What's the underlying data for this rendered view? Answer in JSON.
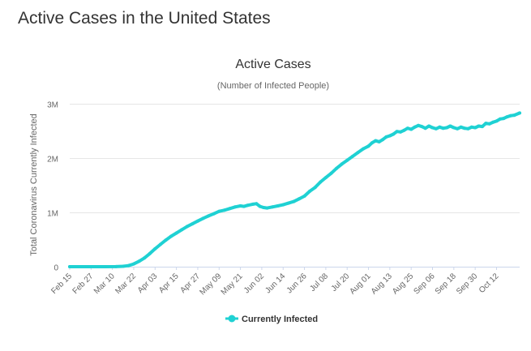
{
  "page": {
    "heading": "Active Cases in the United States"
  },
  "colors": {
    "series": "#1fd1d3",
    "grid": "#e6e6e6",
    "axis_text": "#666666",
    "title_text": "#333333"
  },
  "chart_data": {
    "type": "line",
    "title": "Active Cases",
    "subtitle": "(Number of Infected People)",
    "xlabel": "",
    "ylabel": "Total Coronavirus Currently Infected",
    "ylim": [
      0,
      3000000
    ],
    "y_ticks": [
      {
        "value": 0,
        "label": "0"
      },
      {
        "value": 1000000,
        "label": "1M"
      },
      {
        "value": 2000000,
        "label": "2M"
      },
      {
        "value": 3000000,
        "label": "3M"
      }
    ],
    "x_range": [
      0,
      253
    ],
    "x_ticks": [
      {
        "day": 0,
        "label": "Feb 15"
      },
      {
        "day": 12,
        "label": "Feb 27"
      },
      {
        "day": 24,
        "label": "Mar 10"
      },
      {
        "day": 36,
        "label": "Mar 22"
      },
      {
        "day": 48,
        "label": "Apr 03"
      },
      {
        "day": 60,
        "label": "Apr 15"
      },
      {
        "day": 72,
        "label": "Apr 27"
      },
      {
        "day": 84,
        "label": "May 09"
      },
      {
        "day": 96,
        "label": "May 21"
      },
      {
        "day": 108,
        "label": "Jun 02"
      },
      {
        "day": 120,
        "label": "Jun 14"
      },
      {
        "day": 132,
        "label": "Jun 26"
      },
      {
        "day": 144,
        "label": "Jul 08"
      },
      {
        "day": 156,
        "label": "Jul 20"
      },
      {
        "day": 168,
        "label": "Aug 01"
      },
      {
        "day": 180,
        "label": "Aug 13"
      },
      {
        "day": 192,
        "label": "Aug 25"
      },
      {
        "day": 204,
        "label": "Sep 06"
      },
      {
        "day": 216,
        "label": "Sep 18"
      },
      {
        "day": 228,
        "label": "Sep 30"
      },
      {
        "day": 240,
        "label": "Oct 12"
      }
    ],
    "legend": "bottom-center",
    "grid": true,
    "series": [
      {
        "name": "Currently Infected",
        "points": [
          [
            0,
            0
          ],
          [
            10,
            0
          ],
          [
            20,
            0
          ],
          [
            26,
            2000
          ],
          [
            30,
            8000
          ],
          [
            33,
            20000
          ],
          [
            36,
            50000
          ],
          [
            39,
            100000
          ],
          [
            42,
            160000
          ],
          [
            45,
            240000
          ],
          [
            48,
            330000
          ],
          [
            51,
            410000
          ],
          [
            54,
            490000
          ],
          [
            57,
            560000
          ],
          [
            60,
            620000
          ],
          [
            63,
            680000
          ],
          [
            66,
            740000
          ],
          [
            69,
            790000
          ],
          [
            72,
            840000
          ],
          [
            75,
            890000
          ],
          [
            78,
            935000
          ],
          [
            81,
            975000
          ],
          [
            84,
            1020000
          ],
          [
            87,
            1040000
          ],
          [
            90,
            1070000
          ],
          [
            93,
            1100000
          ],
          [
            96,
            1120000
          ],
          [
            98,
            1110000
          ],
          [
            100,
            1130000
          ],
          [
            103,
            1150000
          ],
          [
            105,
            1160000
          ],
          [
            107,
            1110000
          ],
          [
            109,
            1090000
          ],
          [
            111,
            1080000
          ],
          [
            114,
            1100000
          ],
          [
            117,
            1120000
          ],
          [
            120,
            1140000
          ],
          [
            123,
            1170000
          ],
          [
            126,
            1200000
          ],
          [
            129,
            1250000
          ],
          [
            132,
            1300000
          ],
          [
            135,
            1390000
          ],
          [
            138,
            1460000
          ],
          [
            141,
            1560000
          ],
          [
            144,
            1640000
          ],
          [
            147,
            1720000
          ],
          [
            150,
            1810000
          ],
          [
            153,
            1890000
          ],
          [
            156,
            1960000
          ],
          [
            159,
            2030000
          ],
          [
            162,
            2100000
          ],
          [
            165,
            2170000
          ],
          [
            168,
            2220000
          ],
          [
            170,
            2280000
          ],
          [
            172,
            2320000
          ],
          [
            174,
            2300000
          ],
          [
            176,
            2340000
          ],
          [
            178,
            2390000
          ],
          [
            180,
            2410000
          ],
          [
            182,
            2440000
          ],
          [
            184,
            2490000
          ],
          [
            186,
            2480000
          ],
          [
            188,
            2510000
          ],
          [
            190,
            2550000
          ],
          [
            192,
            2530000
          ],
          [
            194,
            2570000
          ],
          [
            196,
            2600000
          ],
          [
            198,
            2580000
          ],
          [
            200,
            2550000
          ],
          [
            202,
            2590000
          ],
          [
            204,
            2560000
          ],
          [
            206,
            2540000
          ],
          [
            208,
            2570000
          ],
          [
            210,
            2550000
          ],
          [
            212,
            2560000
          ],
          [
            214,
            2590000
          ],
          [
            216,
            2560000
          ],
          [
            218,
            2540000
          ],
          [
            220,
            2570000
          ],
          [
            222,
            2550000
          ],
          [
            224,
            2540000
          ],
          [
            226,
            2570000
          ],
          [
            228,
            2560000
          ],
          [
            230,
            2590000
          ],
          [
            232,
            2580000
          ],
          [
            234,
            2640000
          ],
          [
            236,
            2630000
          ],
          [
            238,
            2660000
          ],
          [
            240,
            2680000
          ],
          [
            242,
            2720000
          ],
          [
            244,
            2730000
          ],
          [
            246,
            2760000
          ],
          [
            248,
            2780000
          ],
          [
            250,
            2790000
          ],
          [
            253,
            2830000
          ]
        ]
      }
    ]
  }
}
